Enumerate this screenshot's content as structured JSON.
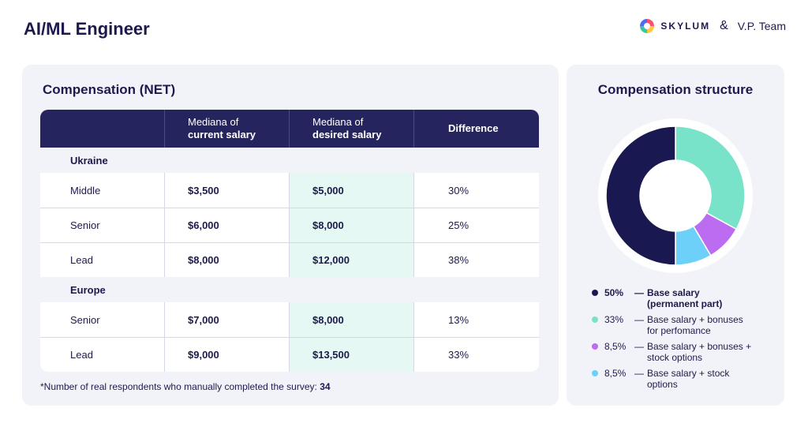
{
  "header": {
    "title": "AI/ML Engineer",
    "brand1": "SKYLUM",
    "amp": "&",
    "brand2": "V.P. Team"
  },
  "compensation": {
    "title": "Compensation (NET)",
    "columns": [
      {
        "line1": "",
        "line2": ""
      },
      {
        "line1": "Mediana of",
        "line2": "current salary"
      },
      {
        "line1": "Mediana of",
        "line2": "desired salary"
      },
      {
        "line1": "Difference",
        "line2": ""
      }
    ],
    "groups": [
      {
        "name": "Ukraine",
        "rows": [
          {
            "level": "Middle",
            "current": "$3,500",
            "desired": "$5,000",
            "difference": "30%"
          },
          {
            "level": "Senior",
            "current": "$6,000",
            "desired": "$8,000",
            "difference": "25%"
          },
          {
            "level": "Lead",
            "current": "$8,000",
            "desired": "$12,000",
            "difference": "38%"
          }
        ]
      },
      {
        "name": "Europe",
        "rows": [
          {
            "level": "Senior",
            "current": "$7,000",
            "desired": "$8,000",
            "difference": "13%"
          },
          {
            "level": "Lead",
            "current": "$9,000",
            "desired": "$13,500",
            "difference": "33%"
          }
        ]
      }
    ],
    "footnote_text": "*Number of real respondents who manually completed the survey: ",
    "footnote_count": "34"
  },
  "structure": {
    "title": "Compensation structure",
    "chart_data": {
      "type": "pie",
      "title": "Compensation structure",
      "slices": [
        {
          "label": "Base salary + bonuses for perfomance",
          "value": 33,
          "color": "#78e3c9"
        },
        {
          "label": "Base salary + bonuses + stock options",
          "value": 8.5,
          "color": "#bc6cf0"
        },
        {
          "label": "Base salary + stock options",
          "value": 8.5,
          "color": "#6cd0f8"
        },
        {
          "label": "Base salary (permanent part)",
          "value": 50,
          "color": "#1a1850"
        }
      ]
    },
    "legend": [
      {
        "percent": "50%",
        "dash": "—",
        "line1": "Base salary",
        "line2": "(permanent part)",
        "color": "#1a1850",
        "bold": true
      },
      {
        "percent": "33%",
        "dash": "—",
        "line1": "Base salary + bonuses",
        "line2": "for perfomance",
        "color": "#78e3c9",
        "bold": false
      },
      {
        "percent": "8,5%",
        "dash": "—",
        "line1": "Base salary + bonuses +",
        "line2": "stock options",
        "color": "#bc6cf0",
        "bold": false
      },
      {
        "percent": "8,5%",
        "dash": "—",
        "line1": "Base salary + stock",
        "line2": "options",
        "color": "#6cd0f8",
        "bold": false
      }
    ]
  }
}
